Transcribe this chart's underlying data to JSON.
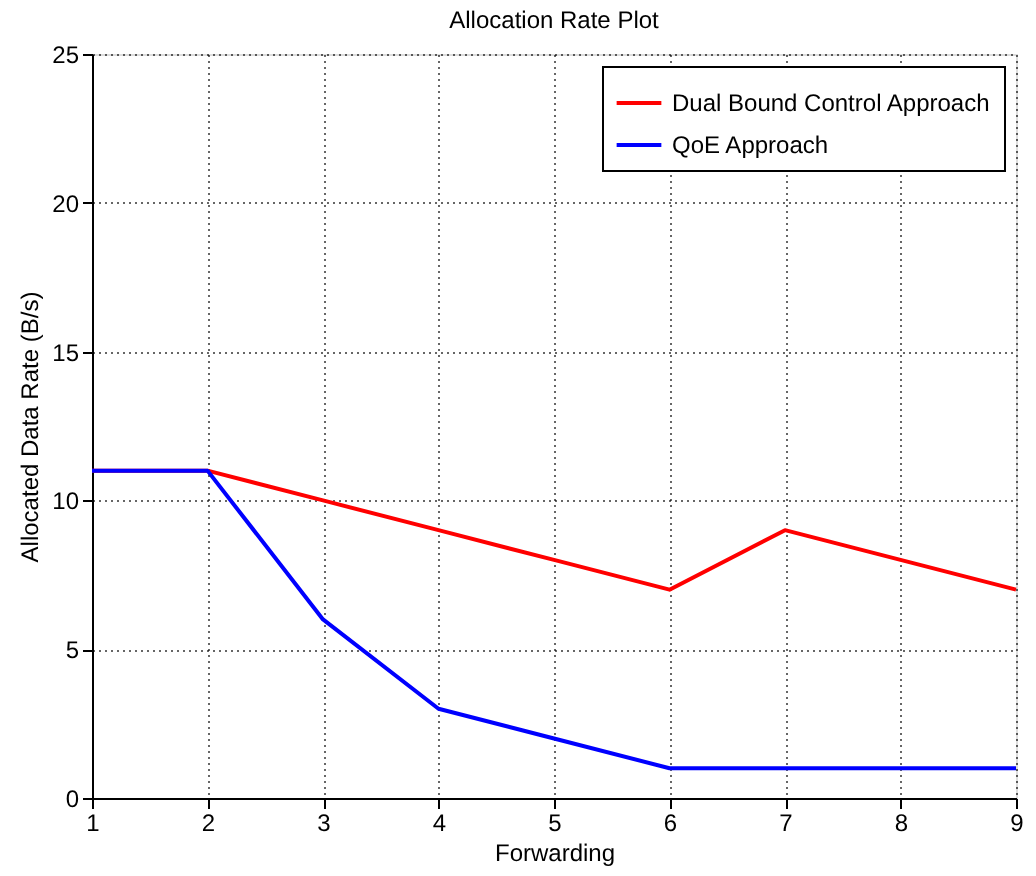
{
  "chart_data": {
    "type": "line",
    "title": "Allocation Rate Plot",
    "xlabel": "Forwarding",
    "ylabel": "Allocated Data Rate (B/s)",
    "x": [
      1,
      2,
      3,
      4,
      5,
      6,
      7,
      8,
      9
    ],
    "series": [
      {
        "name": "Dual Bound Control Approach",
        "color": "#ff0000",
        "values": [
          11,
          11,
          10,
          9,
          8,
          7,
          9,
          8,
          7
        ]
      },
      {
        "name": "QoE Approach",
        "color": "#0000ff",
        "values": [
          11,
          11,
          6,
          3,
          2,
          1,
          1,
          1,
          1
        ]
      }
    ],
    "xlim": [
      1,
      9
    ],
    "ylim": [
      0,
      25
    ],
    "xticks": [
      1,
      2,
      3,
      4,
      5,
      6,
      7,
      8,
      9
    ],
    "yticks": [
      0,
      5,
      10,
      15,
      20,
      25
    ],
    "grid": true,
    "legend": "top right",
    "line_style": "solid"
  }
}
